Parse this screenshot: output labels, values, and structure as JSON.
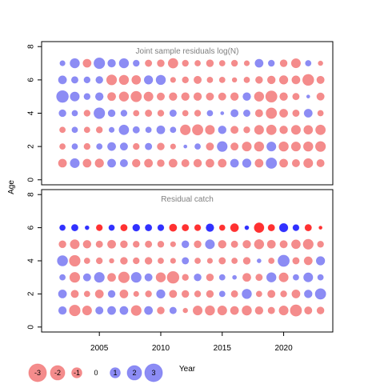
{
  "chart_data": {
    "type": "scatter",
    "subtype": "bubble",
    "ylabel": "Age",
    "xlabel": "Year",
    "x_ticks": [
      2005,
      2010,
      2015,
      2020
    ],
    "y_ticks": [
      0,
      2,
      4,
      6,
      8
    ],
    "xlim": [
      2000.3,
      2024.0
    ],
    "ylim": [
      -0.3,
      8.3
    ],
    "ages": [
      1,
      2,
      3,
      4,
      5,
      6,
      7
    ],
    "years": [
      2002,
      2003,
      2004,
      2005,
      2006,
      2007,
      2008,
      2009,
      2010,
      2011,
      2012,
      2013,
      2014,
      2015,
      2016,
      2017,
      2018,
      2019,
      2020,
      2021,
      2022,
      2023
    ],
    "colors": {
      "positive": "#5b5bf0",
      "negative": "#f05b5b",
      "strong_positive": "#1f1fff",
      "strong_negative": "#ff1f1f"
    },
    "legend": {
      "values": [
        -3,
        -2,
        -1,
        0,
        1,
        2,
        3
      ],
      "labels": [
        "-3",
        "-2",
        "-1",
        "0",
        "1",
        "2",
        "3"
      ]
    },
    "panels": [
      {
        "title": "Joint sample residuals log(N)",
        "ages": [
          1,
          2,
          3,
          4,
          5,
          6,
          7
        ],
        "residuals": [
          [
            -1.2,
            1.5,
            -1.2,
            -1.3,
            1.2,
            1.0,
            -1.1,
            -1.2,
            -0.9,
            -1.2,
            -1.0,
            -1.1,
            -1.2,
            -1.2,
            1.2,
            1.3,
            -1.2,
            2.0,
            -1.2,
            -1.0,
            -1.5,
            -1.0
          ],
          [
            -0.6,
            0.6,
            -0.7,
            0.6,
            1.2,
            1.0,
            -0.7,
            0.8,
            -0.9,
            -0.5,
            0.2,
            0.6,
            -1.0,
            1.8,
            -1.0,
            -1.5,
            -1.6,
            1.5,
            -1.6,
            -1.5,
            -1.6,
            -1.8
          ],
          [
            -0.6,
            0.6,
            -0.6,
            -0.7,
            0.5,
            1.7,
            0.8,
            0.6,
            1.2,
            0.6,
            -1.8,
            -2.0,
            -1.5,
            1.1,
            -1.0,
            -0.7,
            -1.5,
            -1.7,
            -1.1,
            -1.5,
            -1.4,
            -1.7
          ],
          [
            0.9,
            0.6,
            -0.7,
            2.1,
            0.9,
            0.7,
            -0.6,
            -0.8,
            -0.7,
            0.8,
            -0.6,
            -0.7,
            0.6,
            0.2,
            1.0,
            0.8,
            -1.0,
            -2.0,
            -1.2,
            -0.8,
            1.2,
            -0.6
          ],
          [
            2.5,
            1.5,
            0.7,
            1.1,
            -1.2,
            -1.6,
            -2.0,
            -1.5,
            -1.0,
            -1.1,
            -1.1,
            -1.1,
            -1.0,
            -1.0,
            -1.1,
            1.1,
            -1.6,
            -2.3,
            -1.1,
            -0.8,
            0.2,
            -1.0
          ],
          [
            1.2,
            0.8,
            0.7,
            0.9,
            -1.8,
            -1.6,
            -1.4,
            1.3,
            1.6,
            -0.5,
            -0.7,
            -1.0,
            -0.6,
            -0.6,
            -0.4,
            -0.6,
            -0.9,
            -1.1,
            -1.3,
            -1.2,
            -2.2,
            -1.0
          ],
          [
            0.5,
            1.6,
            -1.2,
            2.1,
            1.1,
            1.6,
            0.7,
            -0.8,
            -0.9,
            -1.7,
            -0.7,
            -0.6,
            -0.9,
            -0.6,
            -0.7,
            -0.5,
            1.2,
            0.7,
            -0.9,
            -1.5,
            0.6,
            -0.4
          ]
        ]
      },
      {
        "title": "Residual catch",
        "ages": [
          1,
          2,
          3,
          4,
          5,
          6
        ],
        "residuals": [
          [
            1.1,
            -2.1,
            -1.5,
            1.0,
            1.2,
            1.2,
            -1.8,
            1.2,
            -0.9,
            0.8,
            -0.4,
            -1.5,
            -1.6,
            -1.5,
            -1.2,
            -1.6,
            -1.1,
            -0.8,
            -1.5,
            -2.3,
            -1.0,
            -0.9
          ],
          [
            1.2,
            -1.0,
            -0.6,
            -1.2,
            0.9,
            -1.2,
            -0.5,
            -0.7,
            1.3,
            -1.0,
            -0.9,
            -0.7,
            -0.9,
            0.6,
            -0.8,
            1.6,
            -0.6,
            -1.0,
            -0.7,
            -1.2,
            1.1,
            2.0
          ],
          [
            0.6,
            -1.8,
            1.0,
            1.8,
            -1.2,
            -2.1,
            1.8,
            1.0,
            -1.6,
            -2.5,
            -0.7,
            0.9,
            -0.9,
            0.6,
            0.3,
            -1.2,
            -0.8,
            1.6,
            -1.5,
            0.6,
            1.5,
            0.6
          ],
          [
            1.9,
            -2.1,
            -0.6,
            -0.7,
            -0.4,
            -0.9,
            -0.7,
            -0.9,
            -0.6,
            -0.5,
            0.8,
            -0.6,
            -0.5,
            -0.8,
            -0.6,
            -0.9,
            0.3,
            -0.6,
            2.3,
            -0.8,
            -1.2,
            1.3
          ],
          [
            -0.9,
            -1.5,
            -1.1,
            -0.8,
            -1.2,
            -0.9,
            -0.7,
            -0.8,
            -0.7,
            -0.5,
            0.9,
            -0.9,
            1.5,
            -1.1,
            -0.8,
            -1.1,
            -1.6,
            -1.2,
            -1.0,
            -1.4,
            -1.8,
            -0.7
          ],
          [
            0.6,
            0.8,
            0.3,
            -0.7,
            0.6,
            -0.8,
            0.9,
            0.8,
            0.7,
            -1.0,
            -0.8,
            -0.7,
            1.1,
            -0.6,
            -1.2,
            0.3,
            -1.7,
            -0.8,
            1.3,
            0.7,
            -0.8,
            -0.2
          ]
        ]
      }
    ]
  }
}
